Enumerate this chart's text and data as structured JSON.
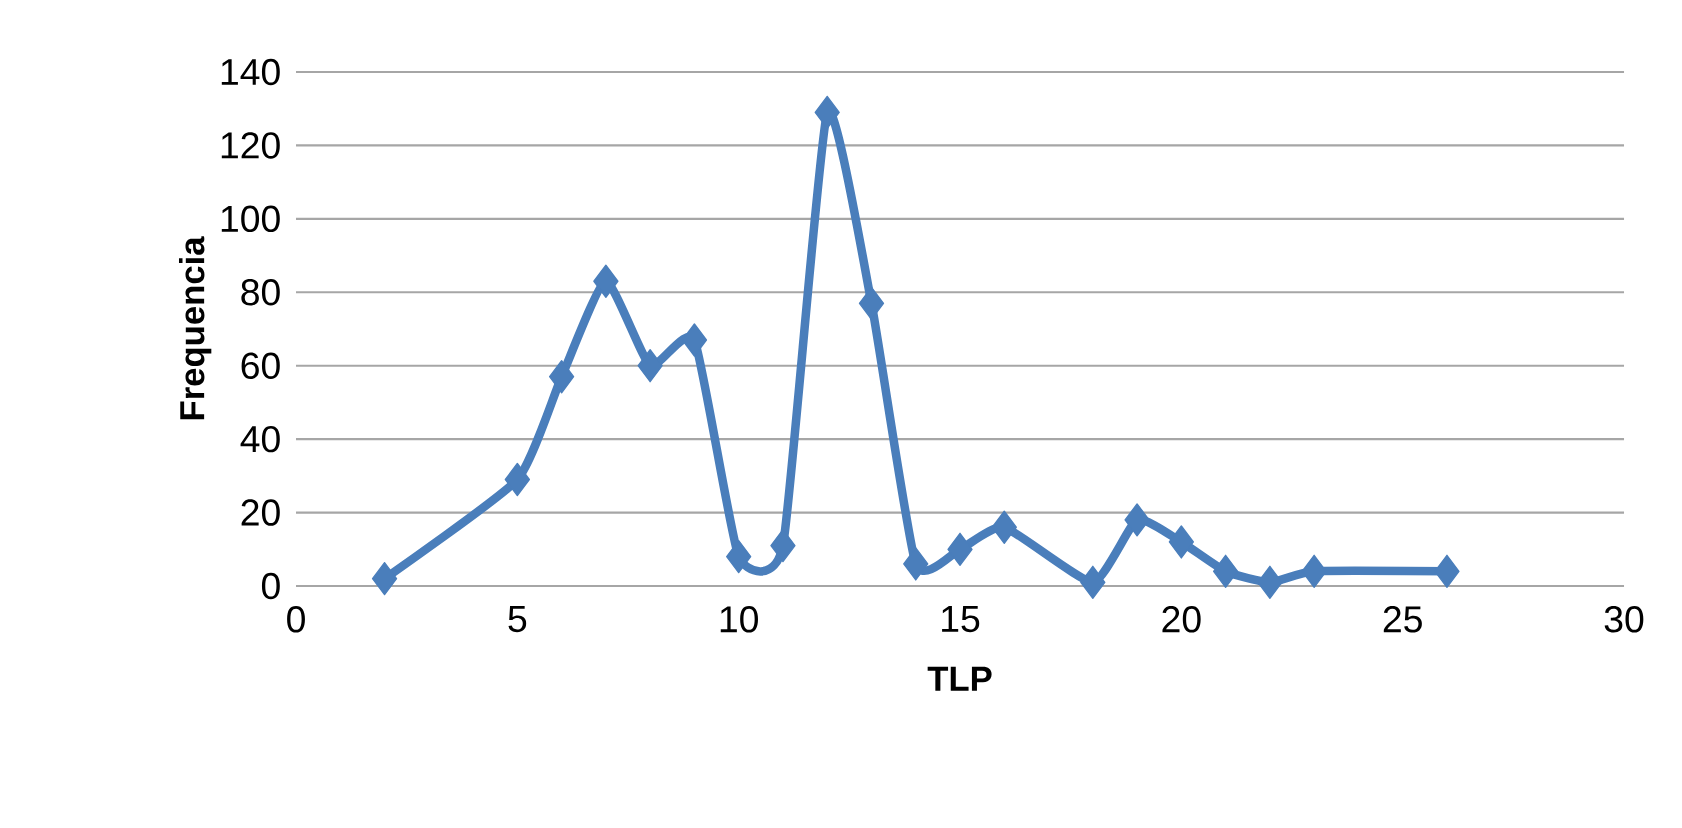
{
  "chart_data": {
    "type": "line",
    "xlabel": "TLP",
    "ylabel": "Frequencia",
    "x": [
      2,
      5,
      6,
      7,
      8,
      9,
      10,
      11,
      12,
      13,
      14,
      15,
      16,
      18,
      19,
      20,
      21,
      22,
      23,
      26
    ],
    "series": [
      {
        "color": "#4a7ebb",
        "values": [
          2,
          29,
          57,
          83,
          60,
          67,
          8,
          11,
          129,
          77,
          6,
          10,
          16,
          1,
          18,
          12,
          4,
          1,
          4,
          4
        ]
      }
    ],
    "xlim": [
      0,
      30
    ],
    "xticks": [
      0,
      5,
      10,
      15,
      20,
      25,
      30
    ],
    "ylim": [
      0,
      140
    ],
    "yticks": [
      0,
      20,
      40,
      60,
      80,
      100,
      120,
      140
    ],
    "grid": "y",
    "marker": "diamond",
    "line_style": "solid"
  }
}
